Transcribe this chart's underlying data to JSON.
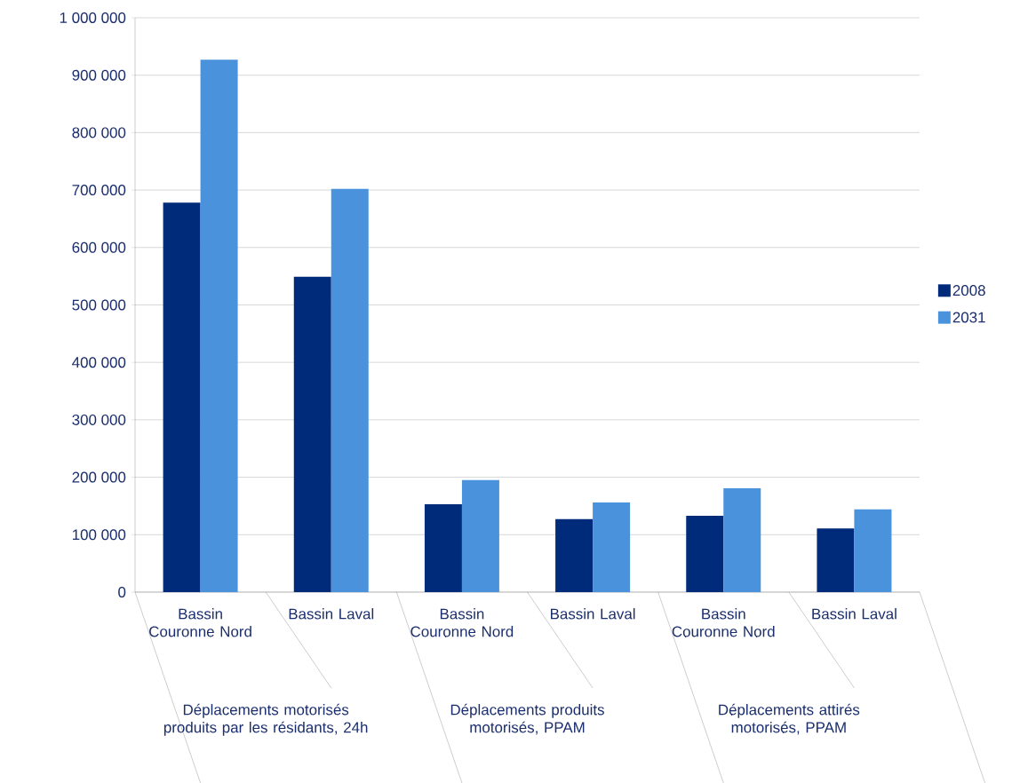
{
  "chart_data": {
    "type": "bar",
    "categories": [
      "Bassin Couronne Nord",
      "Bassin Laval",
      "Bassin Couronne Nord",
      "Bassin Laval",
      "Bassin Couronne Nord",
      "Bassin Laval"
    ],
    "series": [
      {
        "name": "2008",
        "color": "#002a7a",
        "values": [
          678000,
          549000,
          153000,
          127000,
          133000,
          111000
        ]
      },
      {
        "name": "2031",
        "color": "#4a93dc",
        "values": [
          927000,
          702000,
          195000,
          156000,
          181000,
          144000
        ]
      }
    ],
    "annotations": [
      "Déplacements motorisés produits par les résidants, 24h",
      "Déplacements produits motorisés, PPAM",
      "Déplacements attirés motorisés, PPAM"
    ],
    "ylim": [
      0,
      1000000
    ],
    "yticks": [
      0,
      {
        "value": 100000,
        "label": "100 000"
      },
      {
        "value": 200000,
        "label": "200 000"
      },
      {
        "value": 300000,
        "label": "300 000"
      },
      {
        "value": 400000,
        "label": "400 000"
      },
      {
        "value": 500000,
        "label": "500 000"
      },
      {
        "value": 600000,
        "label": "600 000"
      },
      {
        "value": 700000,
        "label": "700 000"
      },
      {
        "value": 800000,
        "label": "800 000"
      },
      {
        "value": 900000,
        "label": "900 000"
      },
      {
        "value": 1000000,
        "label": "1 000 000"
      }
    ],
    "grid": "y",
    "legend": "right"
  }
}
